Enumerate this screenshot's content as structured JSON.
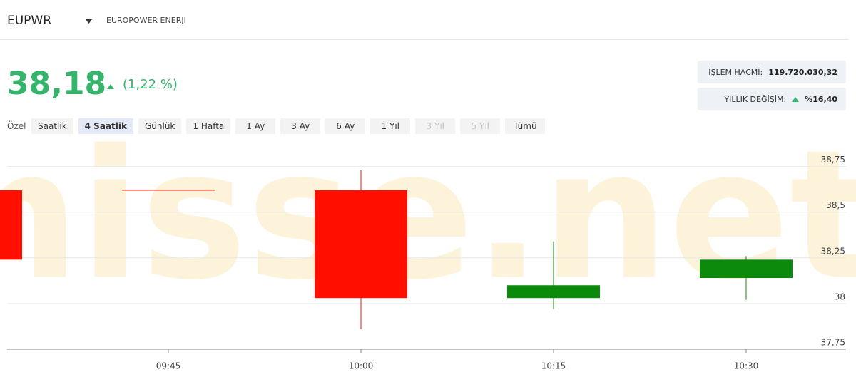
{
  "header": {
    "symbol": "EUPWR",
    "company": "EUROPOWER ENERJI"
  },
  "quote": {
    "price": "38,18",
    "change": "(1,22 %)"
  },
  "stats": [
    {
      "label": "İŞLEM HACMİ:",
      "value": "119.720.030,32"
    },
    {
      "label": "YILLIK DEĞİŞİM:",
      "value": "%16,40"
    }
  ],
  "custom_label": "Özel",
  "ranges": [
    {
      "label": "Saatlik",
      "state": "normal"
    },
    {
      "label": "4 Saatlik",
      "state": "active"
    },
    {
      "label": "Günlük",
      "state": "normal"
    },
    {
      "label": "1 Hafta",
      "state": "normal"
    },
    {
      "label": "1 Ay",
      "state": "normal"
    },
    {
      "label": "3 Ay",
      "state": "normal"
    },
    {
      "label": "6 Ay",
      "state": "normal"
    },
    {
      "label": "1 Yıl",
      "state": "normal"
    },
    {
      "label": "3 Yıl",
      "state": "disabled"
    },
    {
      "label": "5 Yıl",
      "state": "disabled"
    },
    {
      "label": "Tümü",
      "state": "normal"
    }
  ],
  "watermark": "hisse.net",
  "chart_data": {
    "type": "candlestick",
    "categories": [
      null,
      "09:45",
      "10:00",
      "10:15",
      "10:30"
    ],
    "open": [
      38.62,
      38.62,
      38.62,
      38.03,
      38.14
    ],
    "high": [
      38.62,
      38.62,
      38.73,
      38.34,
      38.26
    ],
    "low": [
      38.24,
      38.62,
      37.86,
      37.97,
      38.02
    ],
    "close": [
      38.24,
      38.62,
      38.03,
      38.1,
      38.24
    ],
    "up_color": "#0b8a0b",
    "down_color": "#fe0f00",
    "ylim": [
      37.75,
      38.92
    ],
    "yticks": [
      {
        "value": 37.75,
        "label": "37,75"
      },
      38,
      {
        "value": 38.25,
        "label": "38,25"
      },
      {
        "value": 38.5,
        "label": "38,5"
      },
      {
        "value": 38.75,
        "label": "38,75"
      }
    ],
    "grid": true
  }
}
